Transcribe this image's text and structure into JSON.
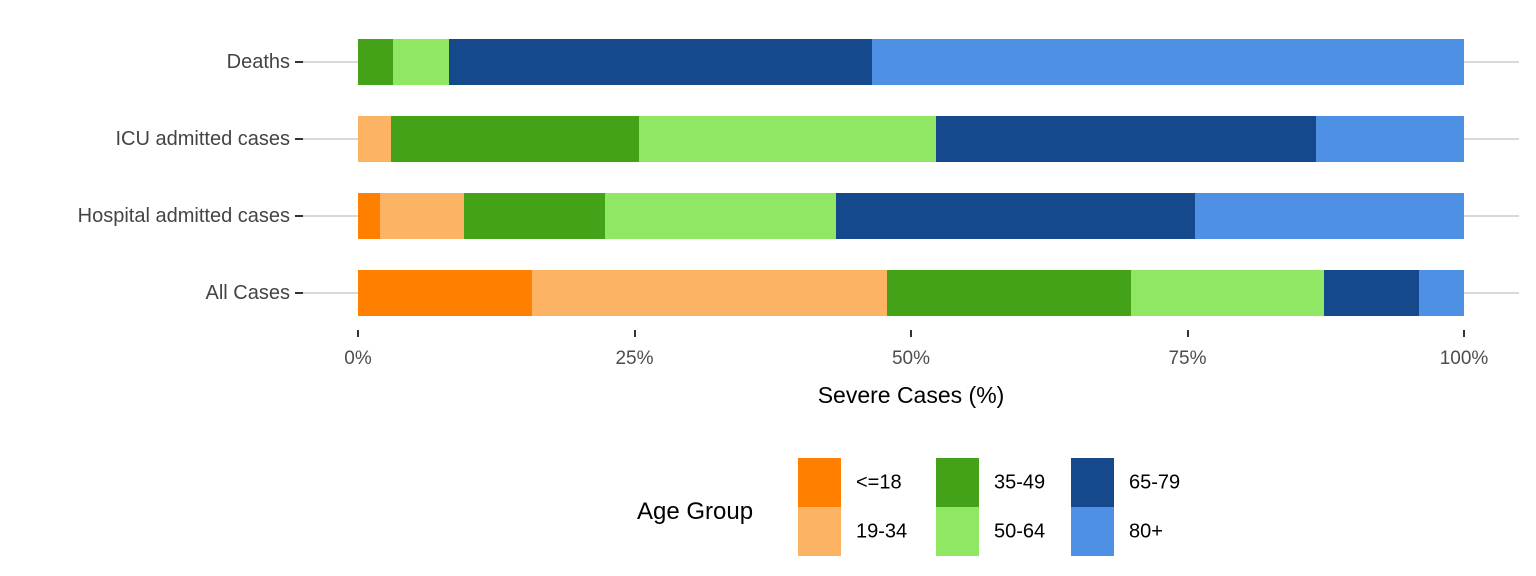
{
  "chart_data": {
    "type": "bar",
    "orientation": "horizontal",
    "stacked": true,
    "categories": [
      "Deaths",
      "ICU admitted cases",
      "Hospital admitted cases",
      "All Cases"
    ],
    "series": [
      {
        "name": "<=18",
        "color": "#FF7F00",
        "values": [
          0,
          0,
          2.0,
          15.7
        ]
      },
      {
        "name": "19-34",
        "color": "#FDB364",
        "values": [
          0,
          3.0,
          7.6,
          32.1
        ]
      },
      {
        "name": "35-49",
        "color": "#43A217",
        "values": [
          3.2,
          22.4,
          12.7,
          22.1
        ]
      },
      {
        "name": "50-64",
        "color": "#8FE763",
        "values": [
          5.0,
          26.9,
          20.9,
          17.4
        ]
      },
      {
        "name": "65-79",
        "color": "#16498C",
        "values": [
          38.3,
          34.3,
          32.5,
          8.6
        ]
      },
      {
        "name": "80+",
        "color": "#4D90E4",
        "values": [
          53.5,
          13.4,
          24.3,
          4.1
        ]
      }
    ],
    "xlabel": "Severe Cases (%)",
    "x_ticks": [
      "0%",
      "25%",
      "50%",
      "75%",
      "100%"
    ],
    "x_tick_values": [
      0,
      25,
      50,
      75,
      100
    ],
    "xlim": [
      0,
      100
    ],
    "grid": "horizontal-category-lines",
    "legend_title": "Age Group",
    "legend_position": "bottom-center",
    "legend_layout": "3-columns-2-rows",
    "background": "#FFFFFF",
    "gridline_color": "#D9D9D9",
    "tick_color": "#333333",
    "axis_text_color": "#4D4D4D"
  }
}
